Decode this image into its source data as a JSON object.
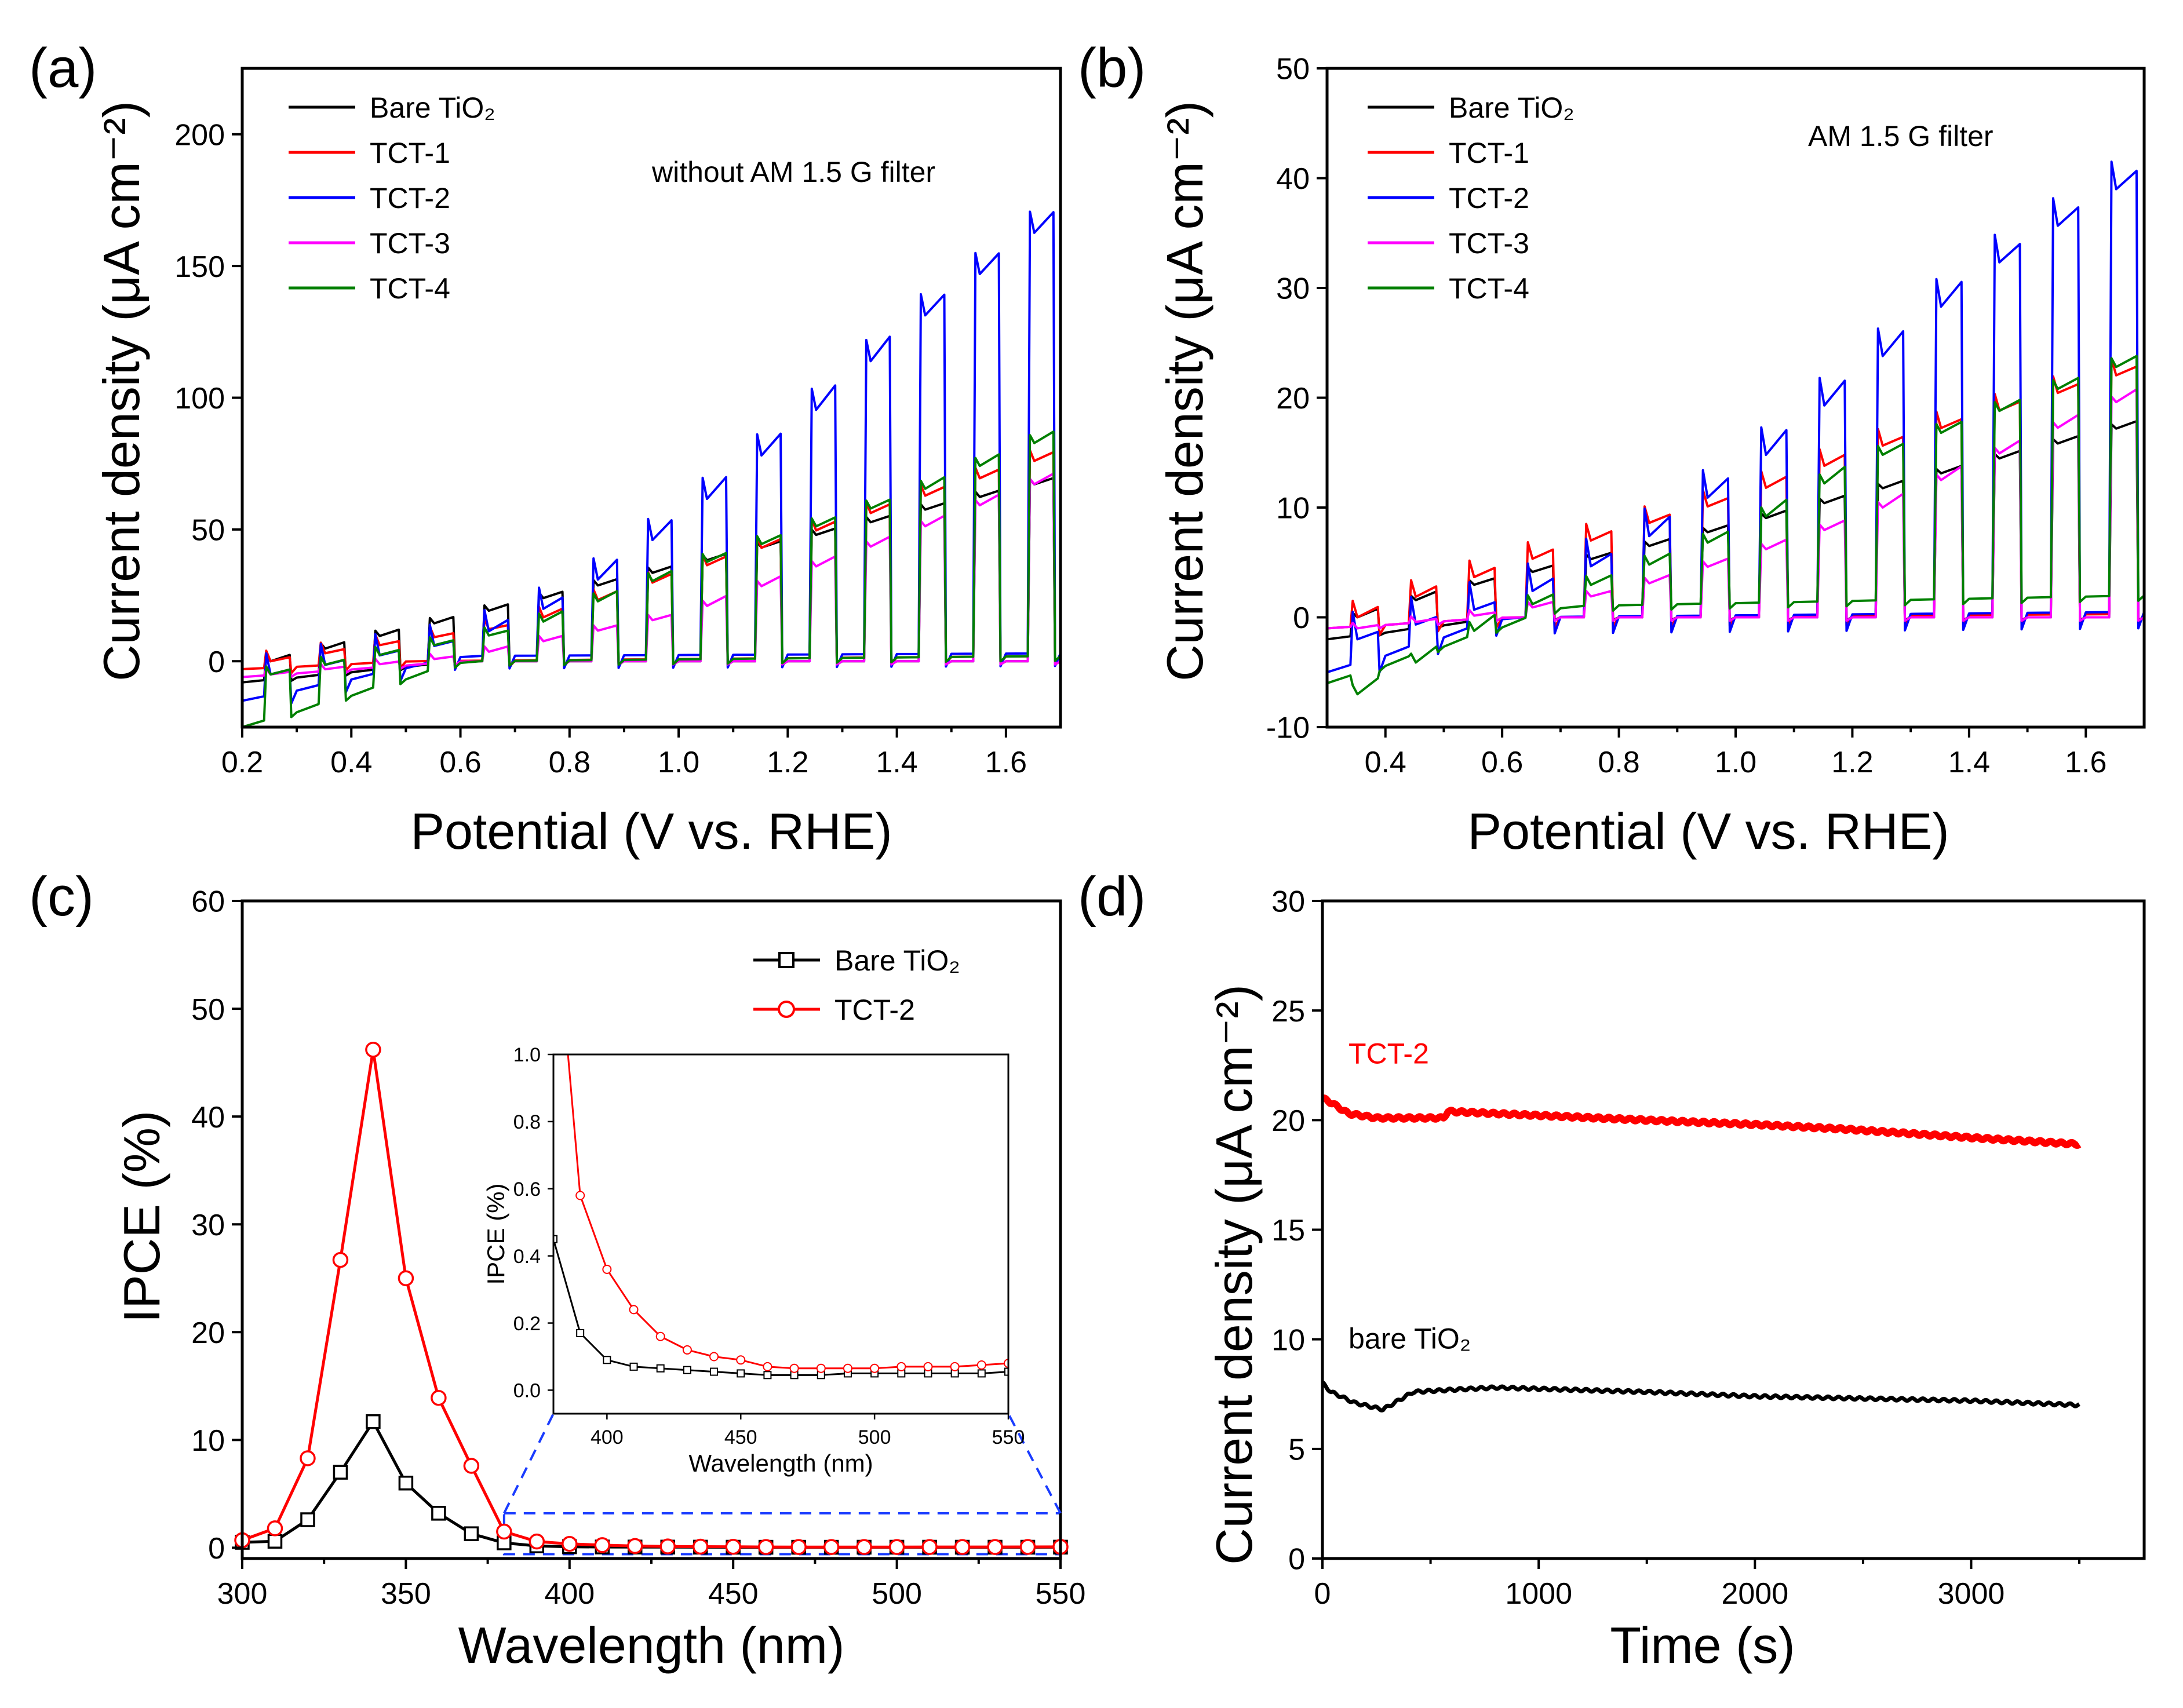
{
  "chart_data": [
    {
      "panel": "(a)",
      "type": "line",
      "annotation": "without AM 1.5 G filter",
      "xlabel": "Potential (V vs. RHE)",
      "ylabel": "Current density (μA cm⁻²)",
      "xlim": [
        0.2,
        1.7
      ],
      "ylim": [
        -25,
        225
      ],
      "xticks": [
        "0.2",
        "0.4",
        "0.6",
        "0.8",
        "1.0",
        "1.2",
        "1.4",
        "1.6"
      ],
      "yticks": [
        "0",
        "50",
        "100",
        "150",
        "200"
      ],
      "chop_starts": [
        0.24,
        0.34,
        0.44,
        0.54,
        0.64,
        0.74,
        0.84,
        0.94,
        1.04,
        1.14,
        1.24,
        1.34,
        1.44,
        1.54,
        1.64
      ],
      "series": [
        {
          "name": "Bare TiO₂",
          "color": "#000000",
          "light": [
            [
              0.24,
              0
            ],
            [
              1.7,
              70
            ]
          ],
          "dark": [
            [
              0.2,
              -8
            ],
            [
              0.6,
              0
            ],
            [
              1.7,
              0
            ]
          ],
          "spike": 2
        },
        {
          "name": "TCT-1",
          "color": "#ff0000",
          "light": [
            [
              0.24,
              0
            ],
            [
              0.7,
              14
            ],
            [
              1.7,
              80
            ]
          ],
          "dark": [
            [
              0.2,
              -3
            ],
            [
              0.5,
              0
            ],
            [
              1.7,
              2
            ]
          ],
          "spike": 4
        },
        {
          "name": "TCT-2",
          "color": "#0000ff",
          "light": [
            [
              0.24,
              -5
            ],
            [
              0.6,
              8
            ],
            [
              0.8,
              25
            ],
            [
              1.0,
              55
            ],
            [
              1.2,
              88
            ],
            [
              1.4,
              125
            ],
            [
              1.7,
              172
            ]
          ],
          "dark": [
            [
              0.2,
              -15
            ],
            [
              0.6,
              2
            ],
            [
              1.7,
              3
            ]
          ],
          "spike": 8
        },
        {
          "name": "TCT-3",
          "color": "#ff00ff",
          "light": [
            [
              0.24,
              -5
            ],
            [
              0.6,
              2
            ],
            [
              1.0,
              18
            ],
            [
              1.4,
              48
            ],
            [
              1.7,
              72
            ]
          ],
          "dark": [
            [
              0.2,
              -6
            ],
            [
              0.6,
              0
            ],
            [
              1.7,
              0
            ]
          ],
          "spike": 2
        },
        {
          "name": "TCT-4",
          "color": "#008000",
          "light": [
            [
              0.24,
              -5
            ],
            [
              0.7,
              12
            ],
            [
              1.0,
              35
            ],
            [
              1.4,
              62
            ],
            [
              1.7,
              88
            ]
          ],
          "dark": [
            [
              0.2,
              -25
            ],
            [
              0.6,
              0
            ],
            [
              1.7,
              2
            ]
          ],
          "spike": 3
        }
      ]
    },
    {
      "panel": "(b)",
      "type": "line",
      "annotation": "AM 1.5 G filter",
      "xlabel": "Potential (V vs. RHE)",
      "ylabel": "Current density (μA cm⁻²)",
      "xlim": [
        0.3,
        1.7
      ],
      "ylim": [
        -10,
        50
      ],
      "xticks": [
        "0.4",
        "0.6",
        "0.8",
        "1.0",
        "1.2",
        "1.4",
        "1.6"
      ],
      "yticks": [
        "-10",
        "0",
        "10",
        "20",
        "30",
        "40",
        "50"
      ],
      "chop_starts": [
        0.34,
        0.44,
        0.54,
        0.64,
        0.74,
        0.84,
        0.94,
        1.04,
        1.14,
        1.24,
        1.34,
        1.44,
        1.54,
        1.64
      ],
      "series": [
        {
          "name": "Bare TiO₂",
          "color": "#000000",
          "light": [
            [
              0.34,
              0
            ],
            [
              0.5,
              2.5
            ],
            [
              0.8,
              6
            ],
            [
              1.0,
              8.5
            ],
            [
              1.7,
              18
            ]
          ],
          "dark": [
            [
              0.3,
              -2
            ],
            [
              0.6,
              0
            ],
            [
              1.7,
              0
            ]
          ],
          "spike": 0.4
        },
        {
          "name": "TCT-1",
          "color": "#ff0000",
          "light": [
            [
              0.34,
              0
            ],
            [
              0.5,
              3
            ],
            [
              0.8,
              8
            ],
            [
              1.0,
              11
            ],
            [
              1.2,
              15
            ],
            [
              1.7,
              23
            ]
          ],
          "dark": [
            [
              0.3,
              -1
            ],
            [
              0.6,
              0
            ],
            [
              1.7,
              0.3
            ]
          ],
          "spike": 1.5
        },
        {
          "name": "TCT-2",
          "color": "#0000ff",
          "light": [
            [
              0.34,
              -2
            ],
            [
              0.6,
              1.5
            ],
            [
              0.8,
              6
            ],
            [
              1.0,
              13
            ],
            [
              1.2,
              22
            ],
            [
              1.4,
              31
            ],
            [
              1.7,
              41
            ]
          ],
          "dark": [
            [
              0.3,
              -5
            ],
            [
              0.6,
              0
            ],
            [
              1.7,
              0.5
            ]
          ],
          "spike": 2.5
        },
        {
          "name": "TCT-3",
          "color": "#ff00ff",
          "light": [
            [
              0.34,
              -1
            ],
            [
              0.6,
              0.5
            ],
            [
              0.8,
              2.5
            ],
            [
              1.0,
              5.5
            ],
            [
              1.2,
              9
            ],
            [
              1.4,
              14
            ],
            [
              1.7,
              21
            ]
          ],
          "dark": [
            [
              0.3,
              -1
            ],
            [
              0.6,
              0
            ],
            [
              1.7,
              0
            ]
          ],
          "spike": 0.5
        },
        {
          "name": "TCT-4",
          "color": "#008000",
          "light": [
            [
              0.34,
              -7
            ],
            [
              0.6,
              0.5
            ],
            [
              0.8,
              4
            ],
            [
              1.0,
              8
            ],
            [
              1.2,
              14
            ],
            [
              1.4,
              18
            ],
            [
              1.7,
              24
            ]
          ],
          "dark": [
            [
              0.3,
              -6
            ],
            [
              0.7,
              1
            ],
            [
              1.7,
              2
            ]
          ],
          "spike": 0.8
        }
      ]
    },
    {
      "panel": "(c)",
      "type": "line",
      "xlabel": "Wavelength (nm)",
      "ylabel": "IPCE (%)",
      "xlim": [
        300,
        550
      ],
      "ylim": [
        -2,
        60
      ],
      "xticks": [
        "300",
        "350",
        "400",
        "450",
        "500",
        "550"
      ],
      "yticks": [
        "0",
        "10",
        "20",
        "30",
        "40",
        "50",
        "60"
      ],
      "x": [
        300,
        310,
        320,
        330,
        340,
        350,
        360,
        370,
        380,
        390,
        400,
        410,
        420,
        430,
        440,
        450,
        460,
        470,
        480,
        490,
        500,
        510,
        520,
        530,
        540,
        550
      ],
      "series": [
        {
          "name": "Bare TiO₂",
          "color": "#000000",
          "marker": "square",
          "values": [
            0.5,
            0.6,
            2.6,
            7.0,
            11.7,
            6.0,
            3.2,
            1.3,
            0.45,
            0.17,
            0.09,
            0.07,
            0.065,
            0.06,
            0.055,
            0.05,
            0.045,
            0.045,
            0.045,
            0.05,
            0.05,
            0.05,
            0.05,
            0.05,
            0.05,
            0.055
          ]
        },
        {
          "name": "TCT-2",
          "color": "#ff0000",
          "marker": "circle",
          "values": [
            0.7,
            1.8,
            8.3,
            26.7,
            46.2,
            25.0,
            13.9,
            7.6,
            1.5,
            0.58,
            0.36,
            0.24,
            0.16,
            0.12,
            0.1,
            0.09,
            0.07,
            0.065,
            0.065,
            0.065,
            0.065,
            0.07,
            0.07,
            0.07,
            0.075,
            0.08
          ]
        }
      ],
      "inset": {
        "xlabel": "Wavelength (nm)",
        "ylabel": "IPCE (%)",
        "xlim": [
          380,
          550
        ],
        "ylim": [
          -0.07,
          1.0
        ],
        "xticks": [
          "400",
          "450",
          "500",
          "550"
        ],
        "yticks": [
          "0.0",
          "0.2",
          "0.4",
          "0.6",
          "0.8",
          "1.0"
        ]
      }
    },
    {
      "panel": "(d)",
      "type": "line",
      "xlabel": "Time (s)",
      "ylabel": "Current density (μA cm⁻²)",
      "xlim": [
        0,
        3800
      ],
      "ylim": [
        0,
        30
      ],
      "xticks": [
        "0",
        "1000",
        "2000",
        "3000"
      ],
      "yticks": [
        "0",
        "5",
        "10",
        "15",
        "20",
        "25",
        "30"
      ],
      "series": [
        {
          "name": "TCT-2",
          "label": "TCT-2",
          "color": "#ff0000",
          "points": [
            [
              0,
              21.0
            ],
            [
              40,
              20.8
            ],
            [
              120,
              20.3
            ],
            [
              250,
              20.1
            ],
            [
              560,
              20.1
            ],
            [
              580,
              20.4
            ],
            [
              800,
              20.3
            ],
            [
              1500,
              20.0
            ],
            [
              2000,
              19.8
            ],
            [
              2400,
              19.6
            ],
            [
              3000,
              19.2
            ],
            [
              3500,
              18.9
            ]
          ]
        },
        {
          "name": "bare TiO₂",
          "label": "bare TiO₂",
          "color": "#000000",
          "points": [
            [
              0,
              8.0
            ],
            [
              40,
              7.6
            ],
            [
              150,
              7.1
            ],
            [
              280,
              6.8
            ],
            [
              350,
              7.2
            ],
            [
              420,
              7.6
            ],
            [
              600,
              7.7
            ],
            [
              800,
              7.8
            ],
            [
              1500,
              7.6
            ],
            [
              2000,
              7.4
            ],
            [
              3000,
              7.2
            ],
            [
              3500,
              7.0
            ]
          ]
        }
      ]
    }
  ]
}
